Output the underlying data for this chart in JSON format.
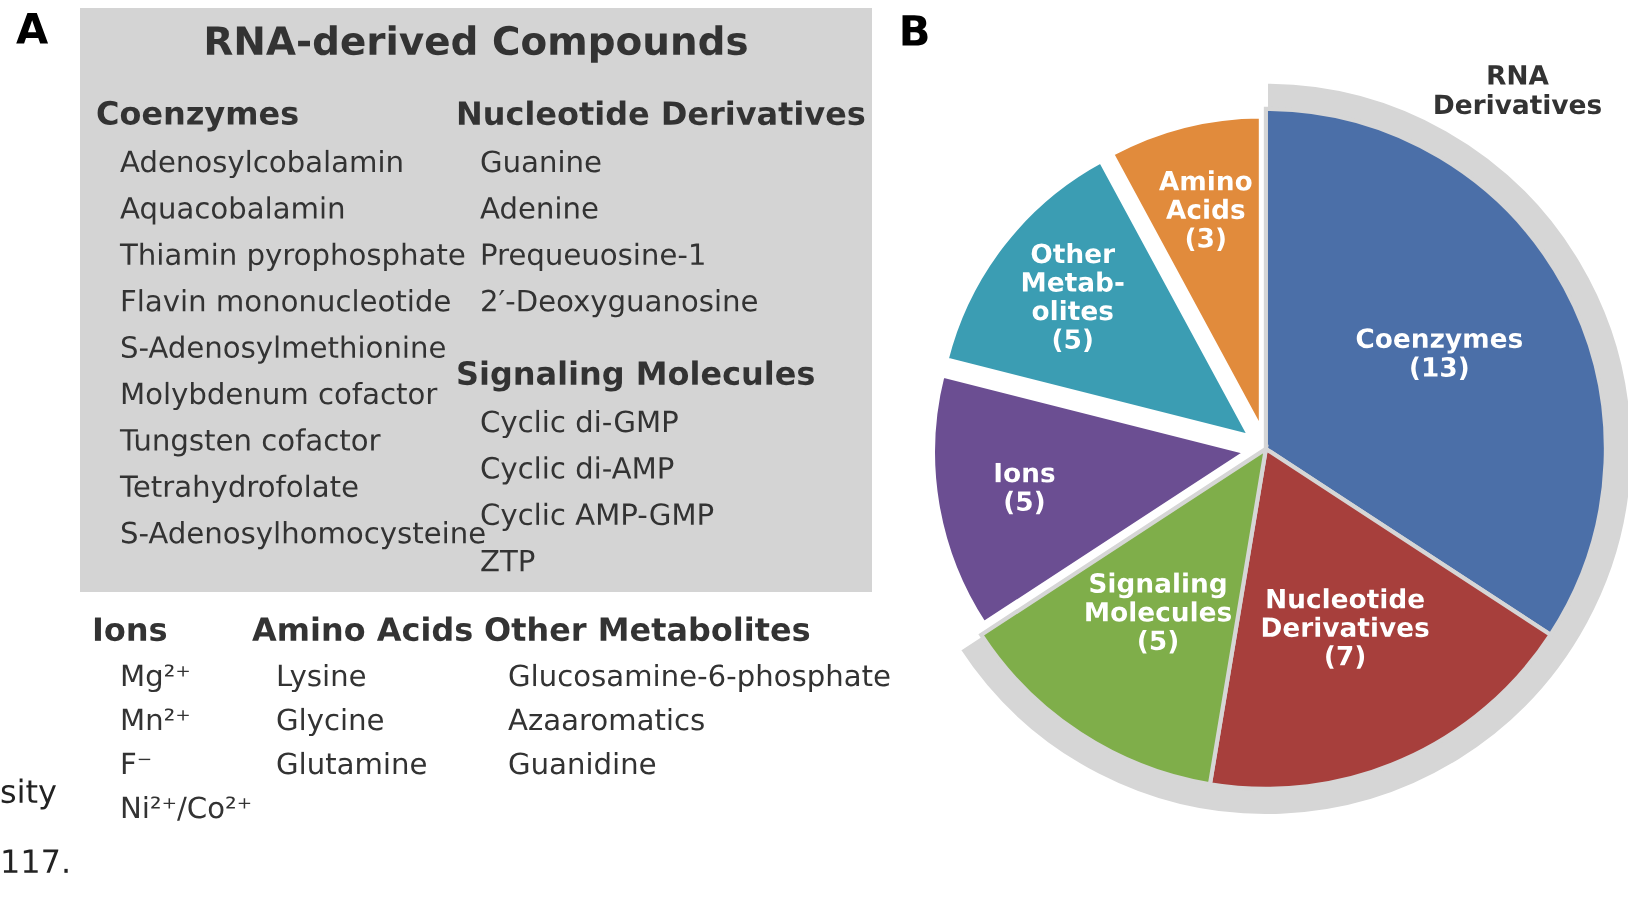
{
  "chart_data": [
    {
      "type": "other",
      "title": "RNA-derived Compounds",
      "annotations": [
        "A",
        "Coenzymes",
        "Adenosylcobalamin",
        "Aquacobalamin",
        "Thiamin pyrophosphate",
        "Flavin mononucleotide",
        "S-Adenosylmethionine",
        "Molybdenum cofactor",
        "Tungsten cofactor",
        "Tetrahydrofolate",
        "S-Adenosylhomocysteine",
        "Nucleotide Derivatives",
        "Guanine",
        "Adenine",
        "Prequeuosine-1",
        "2′-Deoxyguanosine",
        "Signaling Molecules",
        "Cyclic di-GMP",
        "Cyclic di-AMP",
        "Cyclic AMP-GMP",
        "ZTP",
        "Ions",
        "Mg²⁺",
        "Mn²⁺",
        "F⁻",
        "Ni²⁺/Co²⁺",
        "Amino Acids",
        "Lysine",
        "Glycine",
        "Glutamine",
        "Other Metabolites",
        "Glucosamine-6-phosphate",
        "Azaaromatics",
        "Guanidine",
        "sity",
        "117."
      ]
    },
    {
      "type": "pie",
      "categories": [
        "Coenzymes",
        "Nucleotide\nDerivatives",
        "Signaling\nMolecules",
        "Ions",
        "Other\nMetab-\nolites",
        "Amino\nAcids"
      ],
      "values": [
        13,
        7,
        5,
        5,
        5,
        3
      ],
      "colors": [
        "#4b6fa8",
        "#a73f3c",
        "#7fae4a",
        "#6b4e92",
        "#3b9db3",
        "#e18b3c"
      ],
      "value_labels": [
        "(13)",
        "(7)",
        "(5)",
        "(5)",
        "(5)",
        "(3)"
      ],
      "legend": false,
      "annotations": [
        "B",
        "RNA\nDerivatives"
      ]
    }
  ]
}
